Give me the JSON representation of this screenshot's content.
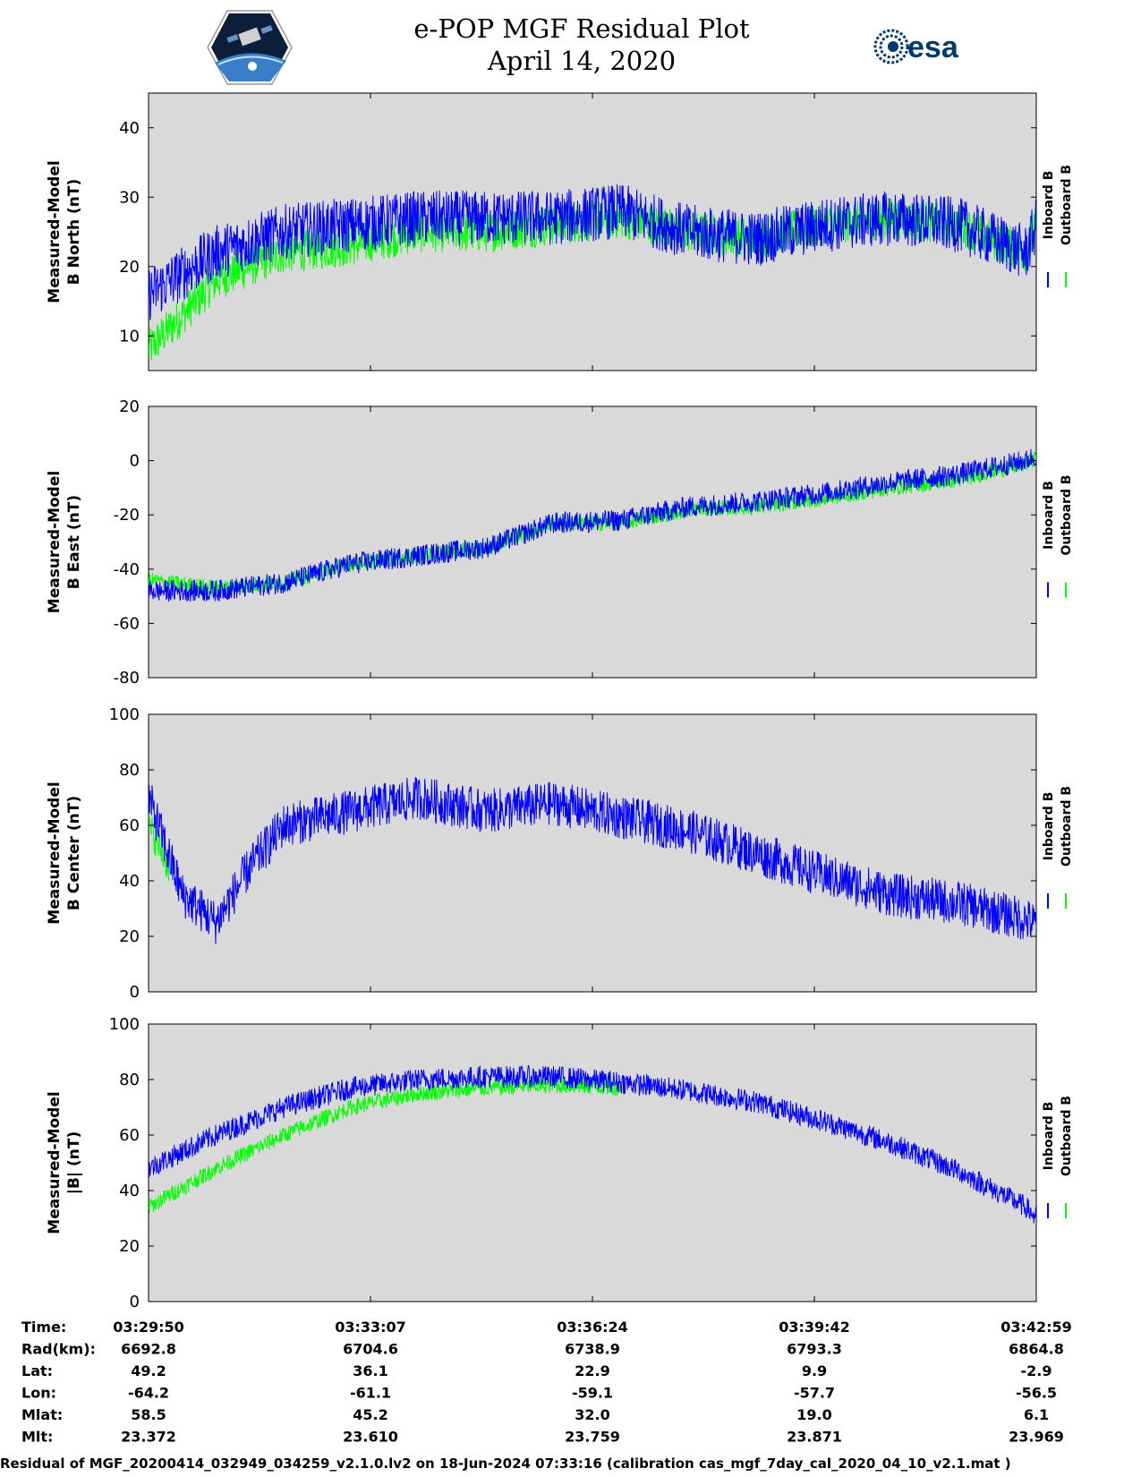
{
  "header": {
    "title_line1": "e-POP MGF Residual Plot",
    "title_line2": "April 14, 2020",
    "logo_left_icon": "cassiope-satellite-logo-icon",
    "logo_right_icon": "esa-logo-icon",
    "logo_right_text": "esa"
  },
  "colors": {
    "inboard": "#0000ff",
    "outboard": "#00ff00",
    "plot_bg": "#d9d9d9"
  },
  "chart_data": [
    {
      "type": "line",
      "ylabel_line1": "Measured-Model",
      "ylabel_line2": "B North (nT)",
      "ylim": [
        5,
        45
      ],
      "yticks": [
        10,
        20,
        30,
        40
      ],
      "legend": [
        "Inboard B",
        "Outboard B"
      ],
      "series": [
        {
          "name": "Inboard B",
          "x": [
            0,
            0.5,
            1,
            2,
            3,
            4,
            5,
            6,
            7,
            8,
            9,
            10,
            11,
            12,
            13,
            13.15
          ],
          "values": [
            16,
            19,
            22,
            25,
            26,
            27,
            27,
            27,
            28,
            25,
            24,
            26,
            27,
            26,
            22,
            26
          ],
          "amplitude": 4
        },
        {
          "name": "Outboard B",
          "x": [
            0,
            0.5,
            1,
            2,
            3,
            4,
            5,
            6,
            7,
            8,
            9,
            10,
            11,
            12,
            13,
            13.15
          ],
          "values": [
            8,
            13,
            18,
            22,
            23,
            25,
            25,
            26,
            27,
            25,
            24,
            26,
            27,
            26,
            22,
            26
          ],
          "amplitude": 3
        }
      ]
    },
    {
      "type": "line",
      "ylabel_line1": "Measured-Model",
      "ylabel_line2": "B East (nT)",
      "ylim": [
        -80,
        20
      ],
      "yticks": [
        -80,
        -60,
        -40,
        -20,
        0,
        20
      ],
      "legend": [
        "Inboard B",
        "Outboard B"
      ],
      "series": [
        {
          "name": "Inboard B",
          "x": [
            0,
            1,
            2,
            3,
            4,
            5,
            6,
            7,
            8,
            9,
            10,
            11,
            12,
            13,
            13.15
          ],
          "values": [
            -48,
            -48,
            -45,
            -38,
            -35,
            -32,
            -23,
            -22,
            -17,
            -15,
            -12,
            -8,
            -5,
            0,
            2
          ],
          "amplitude": 4
        },
        {
          "name": "Outboard B",
          "x": [
            0,
            1,
            2,
            3,
            4,
            5,
            6,
            7,
            8,
            9,
            10,
            11,
            12,
            13,
            13.15
          ],
          "values": [
            -44,
            -47,
            -45,
            -38,
            -35,
            -32,
            -23,
            -23,
            -18,
            -17,
            -14,
            -10,
            -7,
            -1,
            1
          ],
          "amplitude": 3
        }
      ]
    },
    {
      "type": "line",
      "ylabel_line1": "Measured-Model",
      "ylabel_line2": "B Center (nT)",
      "ylim": [
        0,
        100
      ],
      "yticks": [
        0,
        20,
        40,
        60,
        80,
        100
      ],
      "legend": [
        "Inboard B",
        "Outboard B"
      ],
      "series": [
        {
          "name": "Inboard B",
          "x": [
            0,
            0.5,
            1,
            1.5,
            2,
            3,
            4,
            5,
            6,
            7,
            8,
            9,
            10,
            11,
            12,
            13,
            13.15
          ],
          "values": [
            70,
            35,
            25,
            45,
            60,
            65,
            70,
            65,
            68,
            63,
            58,
            50,
            42,
            35,
            32,
            26,
            24
          ],
          "amplitude": 8
        },
        {
          "name": "Outboard B",
          "x": [
            0,
            0.3
          ],
          "values": [
            60,
            45
          ],
          "amplitude": 6
        }
      ]
    },
    {
      "type": "line",
      "ylabel_line1": "Measured-Model",
      "ylabel_line2": "|B| (nT)",
      "ylim": [
        0,
        100
      ],
      "yticks": [
        0,
        20,
        40,
        60,
        80,
        100
      ],
      "legend": [
        "Inboard B",
        "Outboard B"
      ],
      "series": [
        {
          "name": "Inboard B",
          "x": [
            0,
            1,
            2,
            3,
            4,
            5,
            6,
            7,
            8,
            9,
            10,
            11,
            12,
            13,
            13.15
          ],
          "values": [
            48,
            60,
            70,
            77,
            80,
            81,
            81,
            79,
            76,
            72,
            65,
            57,
            47,
            34,
            30
          ],
          "amplitude": 4
        },
        {
          "name": "Outboard B",
          "x": [
            0,
            1,
            2,
            3,
            4,
            5,
            6,
            7
          ],
          "values": [
            34,
            48,
            60,
            70,
            75,
            77,
            78,
            77
          ],
          "amplitude": 3
        }
      ]
    }
  ],
  "info": {
    "labels": [
      "Time:",
      "Rad(km):",
      "Lat:",
      "Lon:",
      "Mlat:",
      "Mlt:"
    ],
    "columns": [
      [
        "03:29:50",
        "6692.8",
        "49.2",
        "-64.2",
        "58.5",
        "23.372"
      ],
      [
        "03:33:07",
        "6704.6",
        "36.1",
        "-61.1",
        "45.2",
        "23.610"
      ],
      [
        "03:36:24",
        "6738.9",
        "22.9",
        "-59.1",
        "32.0",
        "23.759"
      ],
      [
        "03:39:42",
        "6793.3",
        "9.9",
        "-57.7",
        "19.0",
        "23.871"
      ],
      [
        "03:42:59",
        "6864.8",
        "-2.9",
        "-56.5",
        "6.1",
        "23.969"
      ]
    ]
  },
  "footer": {
    "text": "Residual of MGF_20200414_032949_034259_v2.1.0.lv2 on 18-Jun-2024 07:33:16 (calibration cas_mgf_7day_cal_2020_04_10_v2.1.mat )"
  }
}
